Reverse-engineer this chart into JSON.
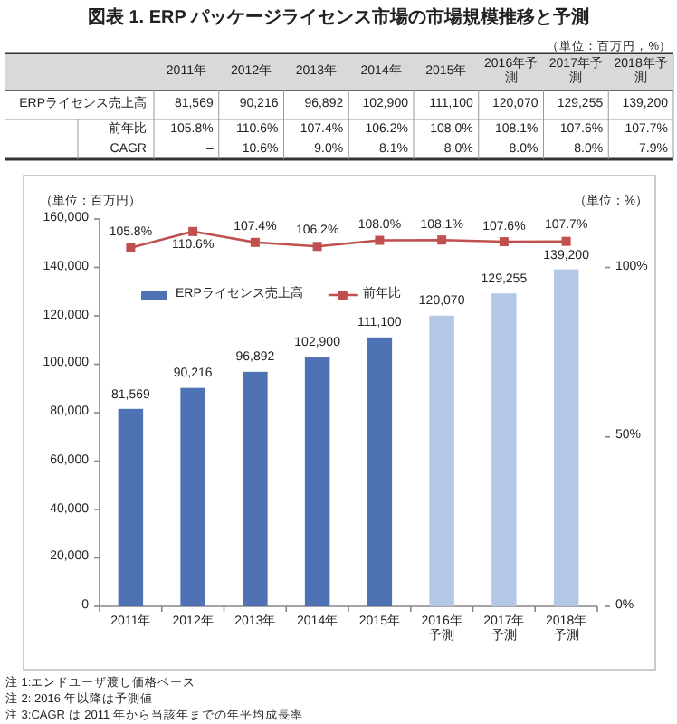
{
  "chart_data": [
    {
      "type": "heatmap",
      "title": "図表 1.  ERP パッケージライセンス市場の市場規模推移と予測",
      "annotations": [
        "（単位：百万円，%）"
      ],
      "categories": [
        "2011年",
        "2012年",
        "2013年",
        "2014年",
        "2015年",
        "2016年予測",
        "2017年予測",
        "2018年予測"
      ],
      "y_categories": [
        "ERPライセンス売上高",
        "前年比",
        "CAGR"
      ],
      "cells": [
        [
          81569,
          90216,
          96892,
          102900,
          111100,
          120070,
          129255,
          139200
        ],
        [
          105.8,
          110.6,
          107.4,
          106.2,
          108.0,
          108.1,
          107.6,
          107.7
        ],
        [
          null,
          10.6,
          9.0,
          8.1,
          8.0,
          8.0,
          8.0,
          7.9
        ]
      ],
      "cell_labels": [
        [
          "81,569",
          "90,216",
          "96,892",
          "102,900",
          "111,100",
          "120,070",
          "129,255",
          "139,200"
        ],
        [
          "105.8%",
          "110.6%",
          "107.4%",
          "106.2%",
          "108.0%",
          "108.1%",
          "107.6%",
          "107.7%"
        ],
        [
          "–",
          "10.6%",
          "9.0%",
          "8.1%",
          "8.0%",
          "8.0%",
          "8.0%",
          "7.9%"
        ]
      ]
    },
    {
      "type": "bar",
      "ylabel": "（単位：百万円）",
      "y2label": "（単位：%）",
      "annotations": [
        "注 1:エンドユーザ渡し価格ベース",
        "注 2: 2016 年以降は予測値",
        "注 3:CAGR は 2011 年から当該年までの年平均成長率"
      ],
      "categories": [
        "2011年",
        "2012年",
        "2013年",
        "2014年",
        "2015年",
        "2016年予測",
        "2017年予測",
        "2018年予測"
      ],
      "ylim": [
        0,
        160000
      ],
      "yticks": [
        {
          "value": 0,
          "label": "0"
        },
        {
          "value": 20000,
          "label": "20,000"
        },
        {
          "value": 40000,
          "label": "40,000"
        },
        {
          "value": 60000,
          "label": "60,000"
        },
        {
          "value": 80000,
          "label": "80,000"
        },
        {
          "value": 100000,
          "label": "100,000"
        },
        {
          "value": 120000,
          "label": "120,000"
        },
        {
          "value": 140000,
          "label": "140,000"
        },
        {
          "value": 160000,
          "label": "160,000"
        }
      ],
      "y2lim": [
        0,
        114.29
      ],
      "y2ticks": [
        {
          "value": 0,
          "label": "0%"
        },
        {
          "value": 50,
          "label": "50%"
        },
        {
          "value": 100,
          "label": "100%"
        }
      ],
      "legend": "top left",
      "series": [
        {
          "name": "ERPライセンス売上高",
          "type": "bar",
          "color": "#4f72b5",
          "colors": [
            "#4f72b5",
            "#4f72b5",
            "#4f72b5",
            "#4f72b5",
            "#4f72b5",
            "#b4c7e7",
            "#b4c7e7",
            "#b4c7e7"
          ],
          "values": [
            81569,
            90216,
            96892,
            102900,
            111100,
            120070,
            129255,
            139200
          ],
          "value_labels": [
            "81,569",
            "90,216",
            "96,892",
            "102,900",
            "111,100",
            "120,070",
            "129,255",
            "139,200"
          ]
        },
        {
          "name": "前年比",
          "type": "line",
          "axis": "y2",
          "color": "#c0504d",
          "marker": "square",
          "values": [
            105.8,
            110.6,
            107.4,
            106.2,
            108.0,
            108.1,
            107.6,
            107.7
          ],
          "value_labels": [
            "105.8%",
            "110.6%",
            "107.4%",
            "106.2%",
            "108.0%",
            "108.1%",
            "107.6%",
            "107.7%"
          ]
        }
      ]
    }
  ]
}
